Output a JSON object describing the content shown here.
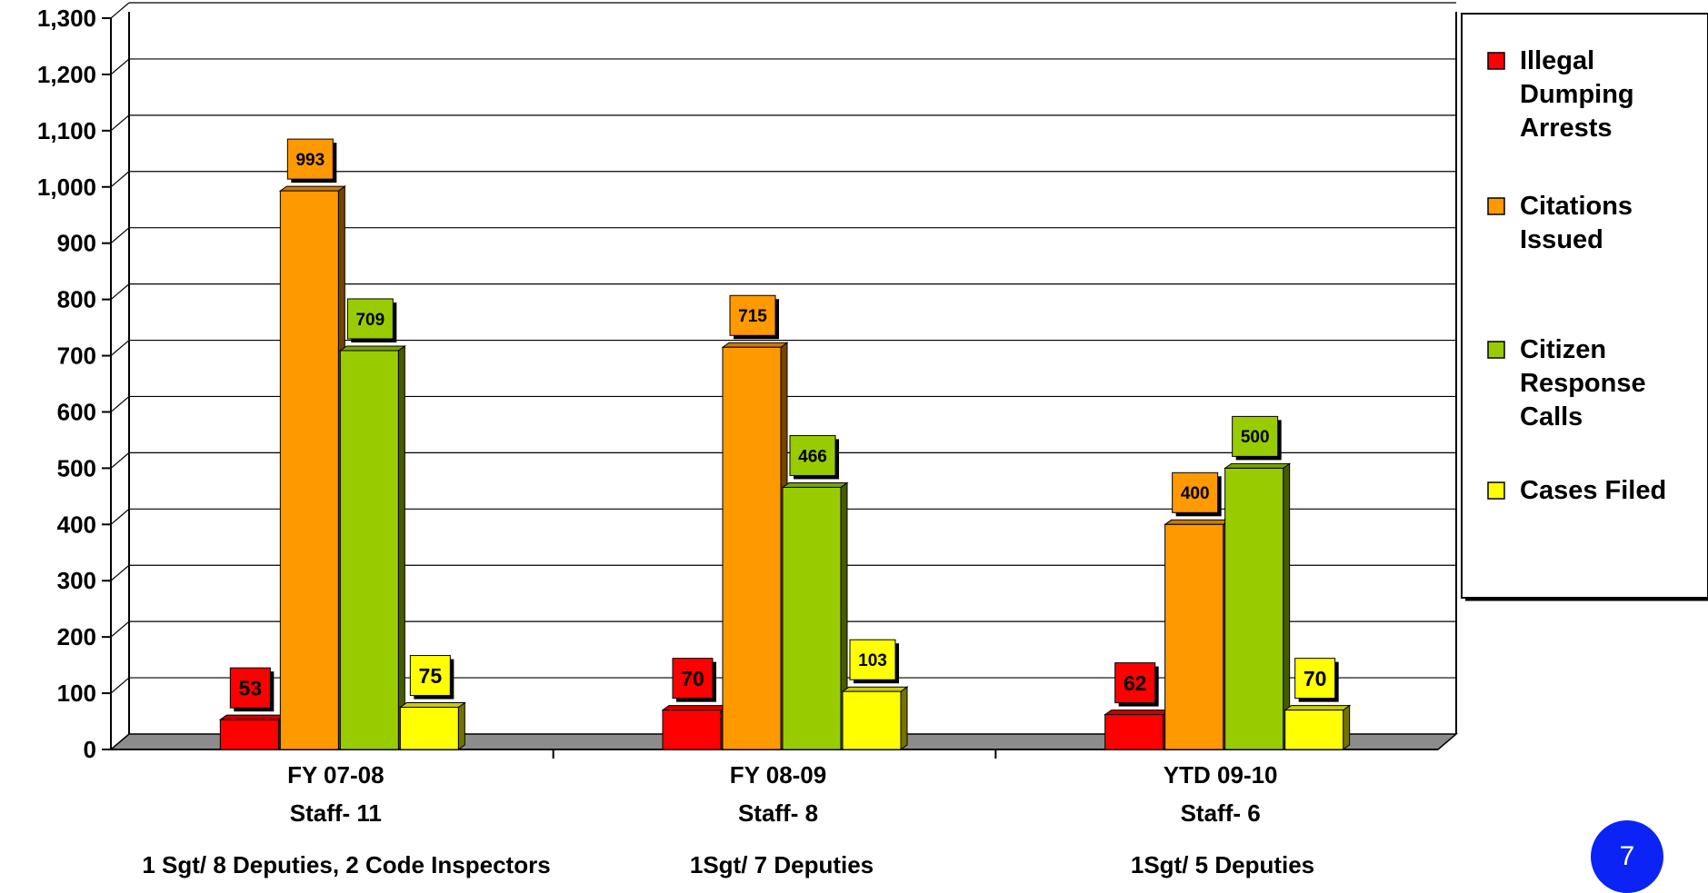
{
  "chart_data": {
    "type": "bar",
    "categories": [
      "FY 07-08",
      "FY 08-09",
      "YTD 09-10"
    ],
    "category_sublabels": [
      [
        "Staff- 11",
        "1 Sgt/ 8 Deputies, 2  Code Inspectors"
      ],
      [
        "Staff- 8",
        "1Sgt/ 7 Deputies"
      ],
      [
        "Staff- 6",
        "1Sgt/ 5 Deputies"
      ]
    ],
    "series": [
      {
        "name": "Illegal Dumping Arrests",
        "legend_lines": [
          "Illegal",
          "Dumping",
          "Arrests"
        ],
        "color": "#ff0000",
        "values": [
          53,
          70,
          62
        ]
      },
      {
        "name": "Citations Issued",
        "legend_lines": [
          "Citations",
          "Issued"
        ],
        "color": "#ff9900",
        "values": [
          993,
          715,
          400
        ]
      },
      {
        "name": "Citizen Response Calls",
        "legend_lines": [
          "Citizen",
          "Response",
          "Calls"
        ],
        "color": "#99cc00",
        "values": [
          709,
          466,
          500
        ]
      },
      {
        "name": "Cases Filed",
        "legend_lines": [
          "Cases Filed"
        ],
        "color": "#ffff00",
        "values": [
          75,
          103,
          70
        ]
      }
    ],
    "ylim": [
      0,
      1300
    ],
    "yticks": [
      "0",
      "100",
      "200",
      "300",
      "400",
      "500",
      "600",
      "700",
      "800",
      "900",
      "1,000",
      "1,100",
      "1,200",
      "1,300"
    ],
    "grid": true,
    "legend_position": "right",
    "title": "",
    "xlabel": "",
    "ylabel": ""
  },
  "page_number": "7"
}
